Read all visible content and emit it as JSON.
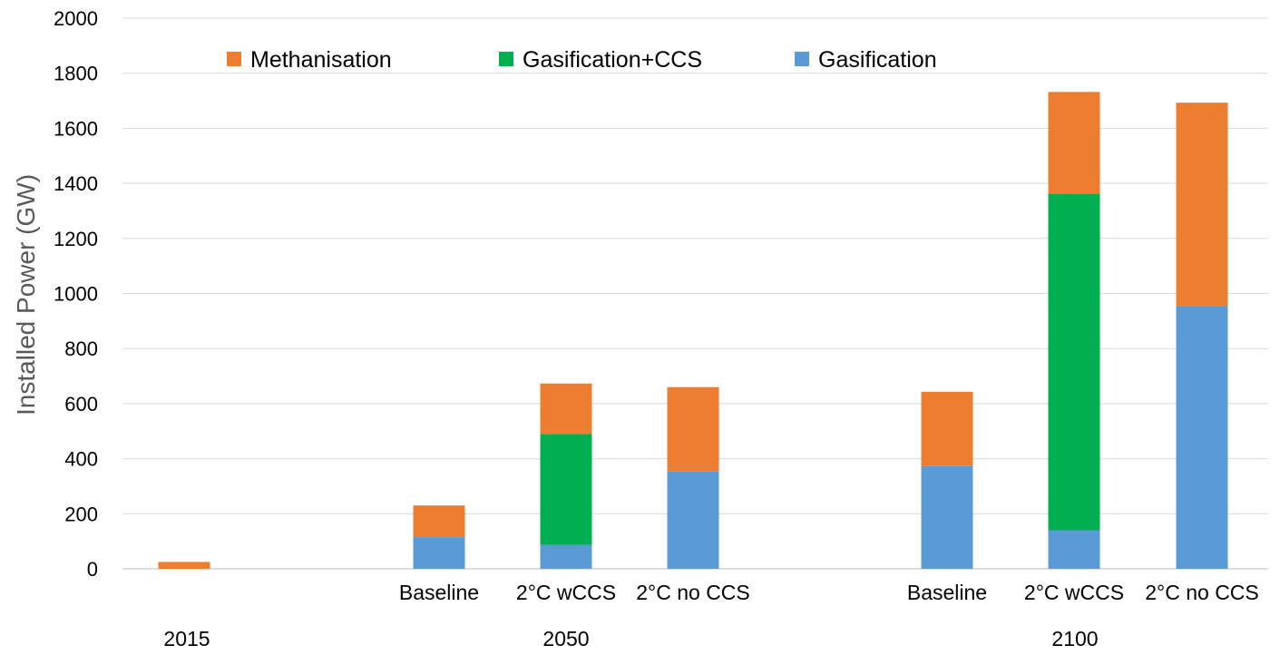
{
  "chart_data": {
    "type": "bar",
    "stacked": true,
    "title": "",
    "xlabel": "",
    "ylabel": "Installed Power (GW)",
    "ylim": [
      0,
      2000
    ],
    "yticks": [
      0,
      200,
      400,
      600,
      800,
      1000,
      1200,
      1400,
      1600,
      1800,
      2000
    ],
    "grid": true,
    "legend_position": "top",
    "groups": [
      {
        "label": "2015",
        "categories": [
          ""
        ]
      },
      {
        "label": "2050",
        "categories": [
          "Baseline",
          "2°C wCCS",
          "2°C no CCS"
        ]
      },
      {
        "label": "2100",
        "categories": [
          "Baseline",
          "2°C wCCS",
          "2°C no CCS"
        ]
      }
    ],
    "series": [
      {
        "name": "Gasification",
        "color": "#5b9bd5",
        "values": [
          0,
          115,
          87,
          355,
          373,
          140,
          955
        ]
      },
      {
        "name": "Gasification+CCS",
        "color": "#00b050",
        "values": [
          0,
          0,
          403,
          0,
          0,
          1222,
          0
        ]
      },
      {
        "name": "Methanisation",
        "color": "#ed7d31",
        "values": [
          25,
          115,
          183,
          305,
          270,
          370,
          738
        ]
      }
    ],
    "legend_order": [
      "Methanisation",
      "Gasification+CCS",
      "Gasification"
    ]
  }
}
